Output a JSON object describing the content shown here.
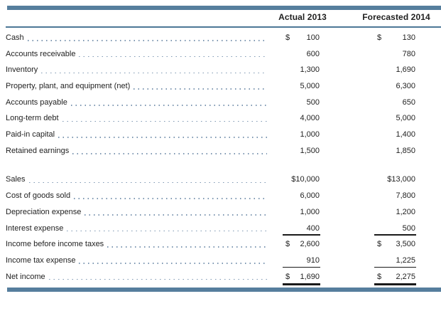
{
  "colors": {
    "bar": "#567e9d",
    "header_rule": "#4d7796",
    "leader_dots": "#7d97b2",
    "text": "#1f1f1f",
    "total_rule": "#1a1a1a"
  },
  "header": {
    "col1": "Actual 2013",
    "col2": "Forecasted 2014"
  },
  "sections": [
    {
      "name": "balance-sheet-items",
      "rows": [
        {
          "label": "Cash",
          "a_sign": "$",
          "a_val": "100",
          "f_sign": "$",
          "f_val": "130",
          "rule": "none"
        },
        {
          "label": "Accounts receivable",
          "a_sign": "",
          "a_val": "600",
          "f_sign": "",
          "f_val": "780",
          "rule": "none"
        },
        {
          "label": "Inventory",
          "a_sign": "",
          "a_val": "1,300",
          "f_sign": "",
          "f_val": "1,690",
          "rule": "none"
        },
        {
          "label": "Property, plant, and equipment (net)",
          "a_sign": "",
          "a_val": "5,000",
          "f_sign": "",
          "f_val": "6,300",
          "rule": "none"
        },
        {
          "label": "Accounts payable",
          "a_sign": "",
          "a_val": "500",
          "f_sign": "",
          "f_val": "650",
          "rule": "none"
        },
        {
          "label": "Long-term debt",
          "a_sign": "",
          "a_val": "4,000",
          "f_sign": "",
          "f_val": "5,000",
          "rule": "none"
        },
        {
          "label": "Paid-in capital",
          "a_sign": "",
          "a_val": "1,000",
          "f_sign": "",
          "f_val": "1,400",
          "rule": "none"
        },
        {
          "label": "Retained earnings",
          "a_sign": "",
          "a_val": "1,500",
          "f_sign": "",
          "f_val": "1,850",
          "rule": "none"
        }
      ]
    },
    {
      "name": "income-statement-items",
      "rows": [
        {
          "label": "Sales",
          "a_sign": "",
          "a_val": "$10,000",
          "f_sign": "",
          "f_val": "$13,000",
          "rule": "none"
        },
        {
          "label": "Cost of goods sold",
          "a_sign": "",
          "a_val": "6,000",
          "f_sign": "",
          "f_val": "7,800",
          "rule": "none"
        },
        {
          "label": "Depreciation expense",
          "a_sign": "",
          "a_val": "1,000",
          "f_sign": "",
          "f_val": "1,200",
          "rule": "none"
        },
        {
          "label": "Interest expense",
          "a_sign": "",
          "a_val": "400",
          "f_sign": "",
          "f_val": "500",
          "rule": "single"
        },
        {
          "label": "Income before income taxes",
          "a_sign": "$",
          "a_val": "2,600",
          "f_sign": "$",
          "f_val": "3,500",
          "rule": "none"
        },
        {
          "label": "Income tax expense",
          "a_sign": "",
          "a_val": "910",
          "f_sign": "",
          "f_val": "1,225",
          "rule": "single"
        },
        {
          "label": "Net income",
          "a_sign": "$",
          "a_val": "1,690",
          "f_sign": "$",
          "f_val": "2,275",
          "rule": "double"
        }
      ]
    }
  ]
}
